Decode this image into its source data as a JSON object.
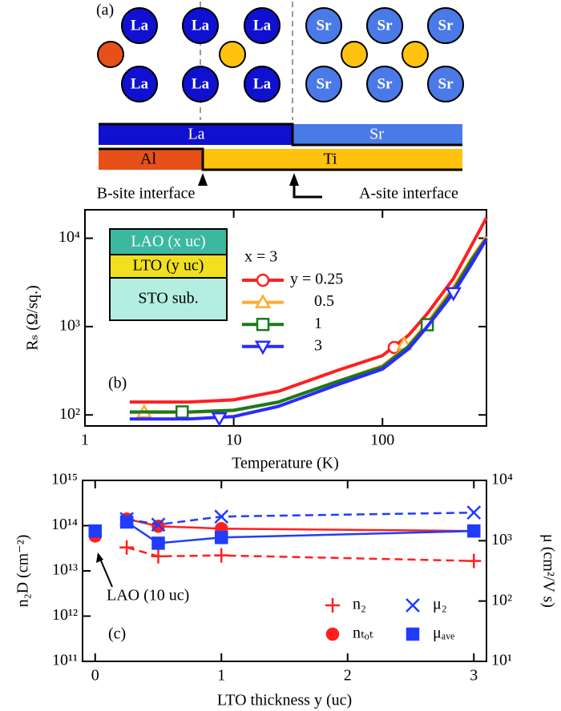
{
  "diagram": {
    "panel_label": "(a)",
    "atoms_top": [
      "La",
      "La",
      "La",
      "Sr",
      "Sr",
      "Sr"
    ],
    "atoms_bottom": [
      "La",
      "La",
      "La",
      "Sr",
      "Sr",
      "Sr"
    ],
    "a_layer": [
      "La",
      "Sr"
    ],
    "b_layer": [
      "Al",
      "Ti"
    ],
    "interfaces": [
      "B-site interface",
      "A-site interface"
    ]
  },
  "chart_data": [
    {
      "type": "line",
      "panel_label": "(b)",
      "xlabel": "Temperature (K)",
      "ylabel": "Rₛ (Ω/sq.)",
      "xscale": "log",
      "yscale": "log",
      "xlim": [
        1,
        500
      ],
      "ylim": [
        75,
        21000
      ],
      "xticks": [
        1,
        10,
        100
      ],
      "yticks": [
        {
          "value": 100,
          "label": "10²"
        },
        {
          "value": 1000,
          "label": "10³"
        },
        {
          "value": 10000,
          "label": "10⁴"
        }
      ],
      "inset_boxes": [
        "LAO (x uc)",
        "LTO (y uc)",
        "STO sub."
      ],
      "legend_title": "x = 3",
      "x": [
        2,
        5,
        10,
        20,
        50,
        100,
        150,
        200,
        300,
        400,
        500
      ],
      "series": [
        {
          "name": "y = 0.25",
          "color": "#ff1f1f",
          "marker": "circle",
          "values": [
            140,
            140,
            148,
            185,
            320,
            470,
            800,
            1400,
            3500,
            8500,
            17000
          ],
          "markers": {
            "x": [
              120
            ],
            "values": [
              580
            ]
          }
        },
        {
          "name": "0.5",
          "color": "#ffaa33",
          "marker": "triangle-up",
          "values": [
            107,
            107,
            112,
            140,
            240,
            360,
            620,
            1100,
            2800,
            6000,
            10500
          ],
          "markers": {
            "x": [
              2.5,
              140
            ],
            "values": [
              107,
              630
            ]
          }
        },
        {
          "name": "1",
          "color": "#1a7a1a",
          "marker": "square",
          "values": [
            108,
            108,
            113,
            140,
            240,
            350,
            600,
            1050,
            2600,
            5800,
            10000
          ],
          "markers": {
            "x": [
              4.5,
              200
            ],
            "values": [
              108,
              1050
            ]
          }
        },
        {
          "name": "3",
          "color": "#2a2aff",
          "marker": "triangle-down",
          "values": [
            90,
            90,
            96,
            125,
            220,
            330,
            560,
            1000,
            2400,
            5200,
            9800
          ],
          "markers": {
            "x": [
              8,
              300
            ],
            "values": [
              92,
              2400
            ]
          }
        }
      ]
    },
    {
      "type": "line",
      "panel_label": "(c)",
      "xlabel": "LTO thickness y (uc)",
      "ylabel": "n₂D (cm⁻²)",
      "y2label": "μ (cm²/V s)",
      "yscale": "log",
      "y2scale": "log",
      "xlim": [
        -0.1,
        3.1
      ],
      "ylim": [
        100000000000.0,
        1000000000000000.0
      ],
      "y2lim": [
        10,
        10000
      ],
      "xticks": [
        0,
        1,
        2,
        3
      ],
      "yticks": [
        {
          "value": 100000000000.0,
          "label": "10¹¹"
        },
        {
          "value": 1000000000000.0,
          "label": "10¹²"
        },
        {
          "value": 10000000000000.0,
          "label": "10¹³"
        },
        {
          "value": 100000000000000.0,
          "label": "10¹⁴"
        },
        {
          "value": 1000000000000000.0,
          "label": "10¹⁵"
        }
      ],
      "y2ticks": [
        {
          "value": 10,
          "label": "10¹"
        },
        {
          "value": 100,
          "label": "10²"
        },
        {
          "value": 1000,
          "label": "10³"
        },
        {
          "value": 10000,
          "label": "10⁴"
        }
      ],
      "annotation": "LAO (10 uc)",
      "x": [
        0.25,
        0.5,
        1,
        3
      ],
      "series": [
        {
          "name": "n₂",
          "color": "#ff1f1f",
          "marker": "plus",
          "dashed": true,
          "values": [
            33000000000000.0,
            21000000000000.0,
            22000000000000.0,
            16600000000000.0
          ]
        },
        {
          "name": "nₜₒₜ",
          "color": "#ff1f1f",
          "marker": "circle",
          "filled": true,
          "values": [
            140000000000000.0,
            97000000000000.0,
            86000000000000.0,
            76000000000000.0
          ],
          "ref": {
            "x": 0,
            "value": 59000000000000.0
          }
        },
        {
          "name": "μ₂",
          "color": "#1f3cff",
          "marker": "x",
          "dashed": true,
          "axis": "y2",
          "values": [
            2290,
            1850,
            2510,
            2930
          ]
        },
        {
          "name": "μₐᵥₑ",
          "color": "#1f3cff",
          "marker": "square",
          "filled": true,
          "axis": "y2",
          "values": [
            2040,
            910,
            1130,
            1450
          ],
          "ref": {
            "x": 0,
            "value": 1450
          }
        }
      ]
    }
  ]
}
